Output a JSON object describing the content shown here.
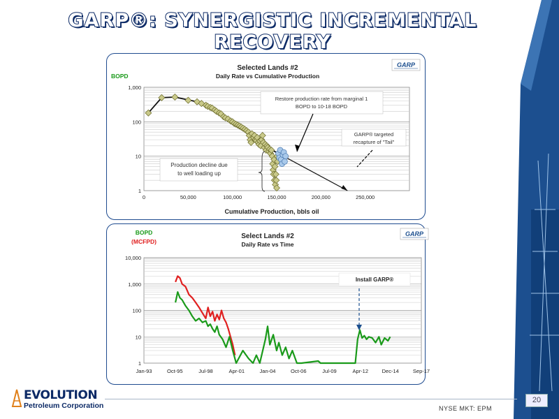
{
  "slide": {
    "title": "GARP®: SYNERGISTIC INCREMENTAL RECOVERY",
    "ticker": "NYSE MKT: EPM",
    "page_number": "20",
    "company_name": "EVOLUTION",
    "company_sub": "Petroleum Corporation",
    "accent_color": "#0c2a66"
  },
  "chart1": {
    "chart_data": {
      "type": "scatter",
      "title": "Selected Lands #2",
      "subtitle": "Daily Rate vs Cumulative Production",
      "xlabel": "Cumulative Production, bbls oil",
      "ylabel": "BOPD",
      "yscale": "log",
      "xlim": [
        0,
        300000
      ],
      "ylim": [
        1,
        1000
      ],
      "x_ticks": [
        "0",
        "50,000",
        "100,000",
        "150,000",
        "200,000",
        "250,000"
      ],
      "y_ticks": [
        "1",
        "10",
        "100",
        "1,000"
      ],
      "logo_text": "GARP",
      "series": [
        {
          "name": "historical",
          "marker": "diamond",
          "color": "#c9c98a",
          "points": [
            [
              5000,
              180
            ],
            [
              20000,
              500
            ],
            [
              35000,
              520
            ],
            [
              50000,
              420
            ],
            [
              60000,
              380
            ],
            [
              65000,
              340
            ],
            [
              70000,
              300
            ],
            [
              72000,
              280
            ],
            [
              75000,
              260
            ],
            [
              77000,
              250
            ],
            [
              80000,
              220
            ],
            [
              82000,
              200
            ],
            [
              85000,
              180
            ],
            [
              87000,
              170
            ],
            [
              90000,
              140
            ],
            [
              92000,
              130
            ],
            [
              95000,
              120
            ],
            [
              98000,
              105
            ],
            [
              100000,
              100
            ],
            [
              102000,
              90
            ],
            [
              104000,
              85
            ],
            [
              106000,
              80
            ],
            [
              108000,
              75
            ],
            [
              110000,
              70
            ],
            [
              112000,
              65
            ],
            [
              114000,
              60
            ],
            [
              116000,
              55
            ],
            [
              118000,
              50
            ],
            [
              119000,
              40
            ],
            [
              120000,
              30
            ],
            [
              121000,
              25
            ],
            [
              122000,
              45
            ],
            [
              124000,
              35
            ],
            [
              125000,
              40
            ],
            [
              126000,
              30
            ],
            [
              127000,
              28
            ],
            [
              128000,
              35
            ],
            [
              129000,
              25
            ],
            [
              130000,
              22
            ],
            [
              131000,
              28
            ],
            [
              132000,
              20
            ],
            [
              133000,
              30
            ],
            [
              134000,
              40
            ],
            [
              135000,
              25
            ],
            [
              136000,
              18
            ],
            [
              137000,
              22
            ],
            [
              138000,
              15
            ],
            [
              139000,
              20
            ],
            [
              140000,
              18
            ],
            [
              141000,
              14
            ],
            [
              142000,
              16
            ],
            [
              143000,
              12
            ],
            [
              144000,
              15
            ],
            [
              145000,
              10
            ],
            [
              145500,
              6
            ],
            [
              146000,
              4
            ],
            [
              146500,
              3
            ],
            [
              147000,
              8
            ],
            [
              147500,
              2
            ],
            [
              148000,
              5
            ],
            [
              148500,
              1.5
            ],
            [
              149000,
              3
            ],
            [
              149500,
              2
            ],
            [
              150000,
              1.2
            ],
            [
              150500,
              10
            ],
            [
              151000,
              7
            ]
          ]
        },
        {
          "name": "GARP",
          "marker": "circle",
          "color": "#a9c9ea",
          "points": [
            [
              152000,
              12
            ],
            [
              153000,
              9
            ],
            [
              154000,
              15
            ],
            [
              155000,
              8
            ],
            [
              156000,
              6
            ],
            [
              157000,
              11
            ],
            [
              158000,
              13
            ],
            [
              159000,
              7
            ],
            [
              160000,
              10
            ]
          ]
        }
      ],
      "fit_lines": [
        {
          "name": "history-trend",
          "points": [
            [
              5000,
              180
            ],
            [
              20000,
              500
            ],
            [
              35000,
              520
            ],
            [
              60000,
              380
            ],
            [
              100000,
              100
            ],
            [
              130000,
              30
            ],
            [
              145000,
              15
            ],
            [
              152000,
              12
            ]
          ]
        },
        {
          "name": "projection",
          "points": [
            [
              152000,
              12
            ],
            [
              230000,
              1
            ]
          ]
        }
      ],
      "annotations": [
        "Restore production rate from marginal 1 BOPD to 10-18 BOPD",
        "GARP® targeted recapture of \"Tail\"",
        "Production decline due to well loading up"
      ]
    }
  },
  "chart2": {
    "chart_data": {
      "type": "line",
      "title": "Select Lands #2",
      "subtitle": "Daily Rate vs Time",
      "ylabel": "BOPD",
      "ylabel2": "(MCFPD)",
      "yscale": "log",
      "ylim": [
        1,
        10000
      ],
      "x_ticks": [
        "Jan-93",
        "Oct-95",
        "Jul-98",
        "Apr-01",
        "Jan-04",
        "Oct-06",
        "Jul-09",
        "Apr-12",
        "Dec-14",
        "Sep-17"
      ],
      "xlim": [
        1993.0,
        2017.67
      ],
      "y_ticks": [
        "1",
        "10",
        "100",
        "1,000",
        "10,000"
      ],
      "logo_text": "GARP",
      "series": [
        {
          "name": "gas",
          "color": "#e02020",
          "points": [
            [
              1995.8,
              1200
            ],
            [
              1996.0,
              2000
            ],
            [
              1996.2,
              1700
            ],
            [
              1996.4,
              1000
            ],
            [
              1996.7,
              800
            ],
            [
              1997.0,
              400
            ],
            [
              1997.3,
              300
            ],
            [
              1997.6,
              200
            ],
            [
              1997.9,
              130
            ],
            [
              1998.2,
              80
            ],
            [
              1998.5,
              50
            ],
            [
              1998.7,
              130
            ],
            [
              1998.9,
              60
            ],
            [
              1999.1,
              90
            ],
            [
              1999.3,
              40
            ],
            [
              1999.5,
              70
            ],
            [
              1999.7,
              45
            ],
            [
              1999.9,
              100
            ],
            [
              2000.1,
              50
            ],
            [
              2000.3,
              35
            ],
            [
              2000.5,
              20
            ],
            [
              2000.7,
              10
            ],
            [
              2000.9,
              5
            ],
            [
              2001.1,
              2
            ]
          ]
        },
        {
          "name": "oil",
          "color": "#1a9a1a",
          "points": [
            [
              1995.8,
              200
            ],
            [
              1996.0,
              500
            ],
            [
              1996.2,
              300
            ],
            [
              1996.4,
              250
            ],
            [
              1996.7,
              150
            ],
            [
              1997.0,
              100
            ],
            [
              1997.3,
              60
            ],
            [
              1997.6,
              40
            ],
            [
              1997.9,
              50
            ],
            [
              1998.2,
              35
            ],
            [
              1998.5,
              40
            ],
            [
              1998.7,
              25
            ],
            [
              1998.9,
              30
            ],
            [
              1999.1,
              20
            ],
            [
              1999.3,
              15
            ],
            [
              1999.5,
              25
            ],
            [
              1999.7,
              12
            ],
            [
              2000.0,
              8
            ],
            [
              2000.3,
              4
            ],
            [
              2000.6,
              10
            ],
            [
              2000.9,
              3
            ],
            [
              2001.2,
              1
            ],
            [
              2001.8,
              3
            ],
            [
              2002.3,
              1.5
            ],
            [
              2002.7,
              1
            ],
            [
              2003.0,
              2
            ],
            [
              2003.3,
              1
            ],
            [
              2003.8,
              8
            ],
            [
              2004.0,
              25
            ],
            [
              2004.2,
              5
            ],
            [
              2004.5,
              12
            ],
            [
              2004.8,
              3
            ],
            [
              2005.0,
              6
            ],
            [
              2005.3,
              2
            ],
            [
              2005.6,
              4
            ],
            [
              2005.9,
              1.5
            ],
            [
              2006.2,
              3
            ],
            [
              2006.6,
              1
            ],
            [
              2007.0,
              1
            ],
            [
              2008.5,
              1.2
            ],
            [
              2008.7,
              1
            ],
            [
              2011.8,
              1
            ],
            [
              2012.0,
              8
            ],
            [
              2012.2,
              18
            ],
            [
              2012.4,
              9
            ],
            [
              2012.6,
              11
            ],
            [
              2012.8,
              8
            ],
            [
              2013.0,
              10
            ],
            [
              2013.3,
              9
            ],
            [
              2013.6,
              6
            ],
            [
              2013.9,
              10
            ],
            [
              2014.1,
              5
            ],
            [
              2014.4,
              9
            ],
            [
              2014.7,
              7
            ],
            [
              2014.9,
              10
            ]
          ]
        }
      ],
      "annotations": [
        "Install GARP®"
      ]
    }
  }
}
